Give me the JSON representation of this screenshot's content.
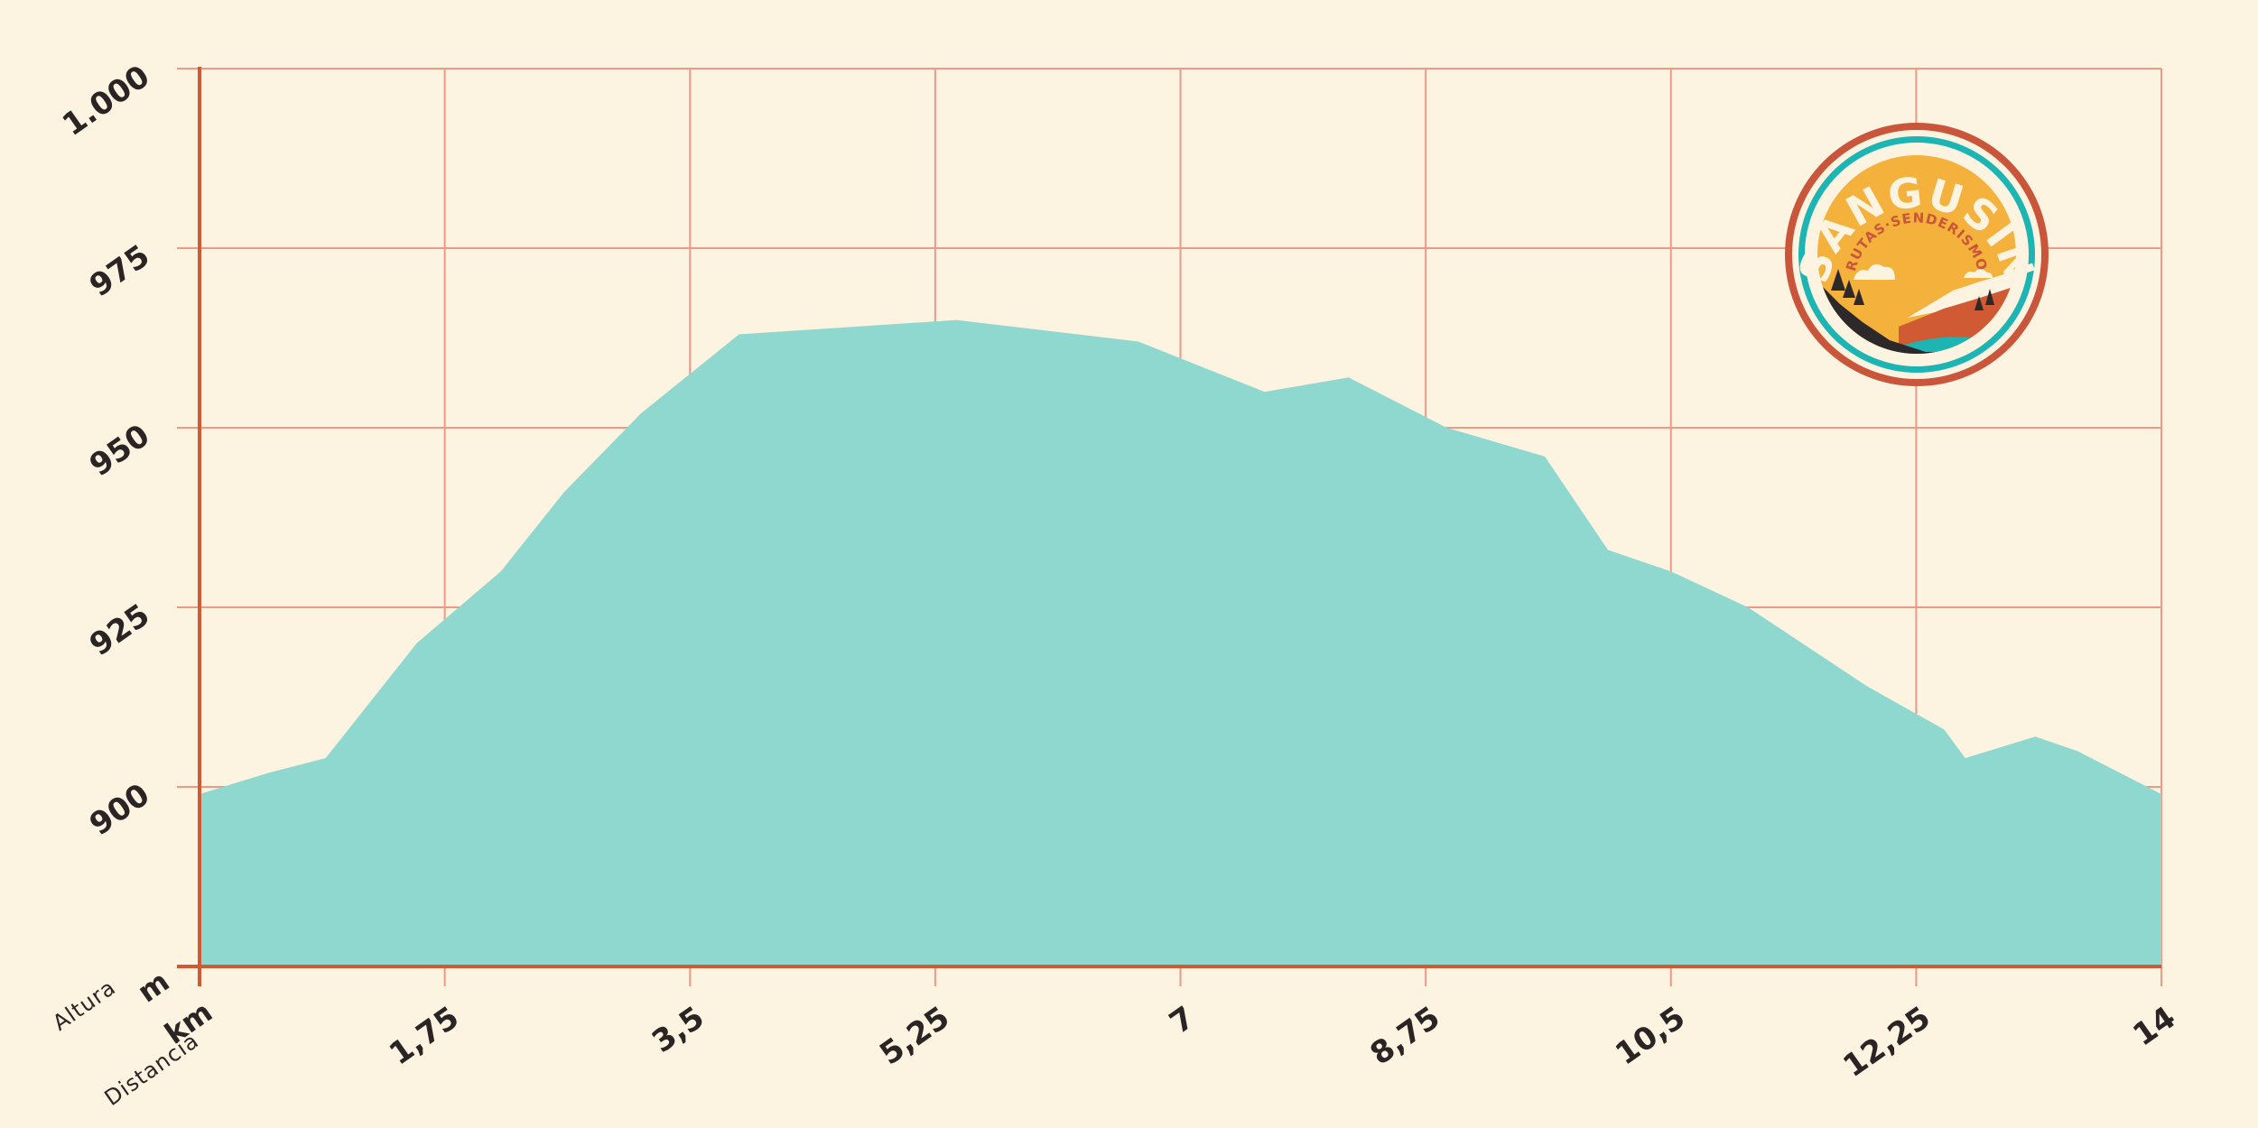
{
  "chart_data": {
    "type": "area",
    "title": "",
    "xlabel": "Distancia",
    "xunit": "km",
    "ylabel": "Altura",
    "yunit": "m",
    "xlim": [
      0,
      14
    ],
    "ylim": [
      875,
      1000
    ],
    "x_ticks": [
      0,
      1.75,
      3.5,
      5.25,
      7,
      8.75,
      10.5,
      12.25,
      14
    ],
    "x_tick_labels": [
      "",
      "1,75",
      "3,5",
      "5,25",
      "7",
      "8,75",
      "10,5",
      "12,25",
      "14"
    ],
    "y_ticks": [
      900,
      925,
      950,
      975,
      1000
    ],
    "y_tick_labels": [
      "900",
      "925",
      "950",
      "975",
      "1.000"
    ],
    "grid": true,
    "series": [
      {
        "color": "#8fd8cf",
        "x": [
          0,
          0.5,
          0.9,
          1.55,
          2.15,
          2.6,
          3.15,
          3.85,
          5.4,
          6.7,
          7.6,
          8.2,
          8.9,
          9.6,
          10.05,
          10.5,
          11.05,
          11.9,
          12.45,
          12.6,
          13.1,
          13.4,
          14
        ],
        "y": [
          899,
          902,
          904,
          920,
          930,
          941,
          952,
          963,
          965,
          962,
          955,
          957,
          950,
          946,
          933,
          930,
          925,
          914,
          908,
          904,
          907,
          905,
          899
        ]
      }
    ]
  },
  "logo": {
    "title": "SANGUSIN",
    "subtitle": "RUTAS·SENDERISMO",
    "colors": {
      "ring": "#c9563a",
      "teal": "#1db5b3",
      "sun": "#f4b13b",
      "dark": "#2d2829",
      "rust": "#cf5a33"
    }
  }
}
